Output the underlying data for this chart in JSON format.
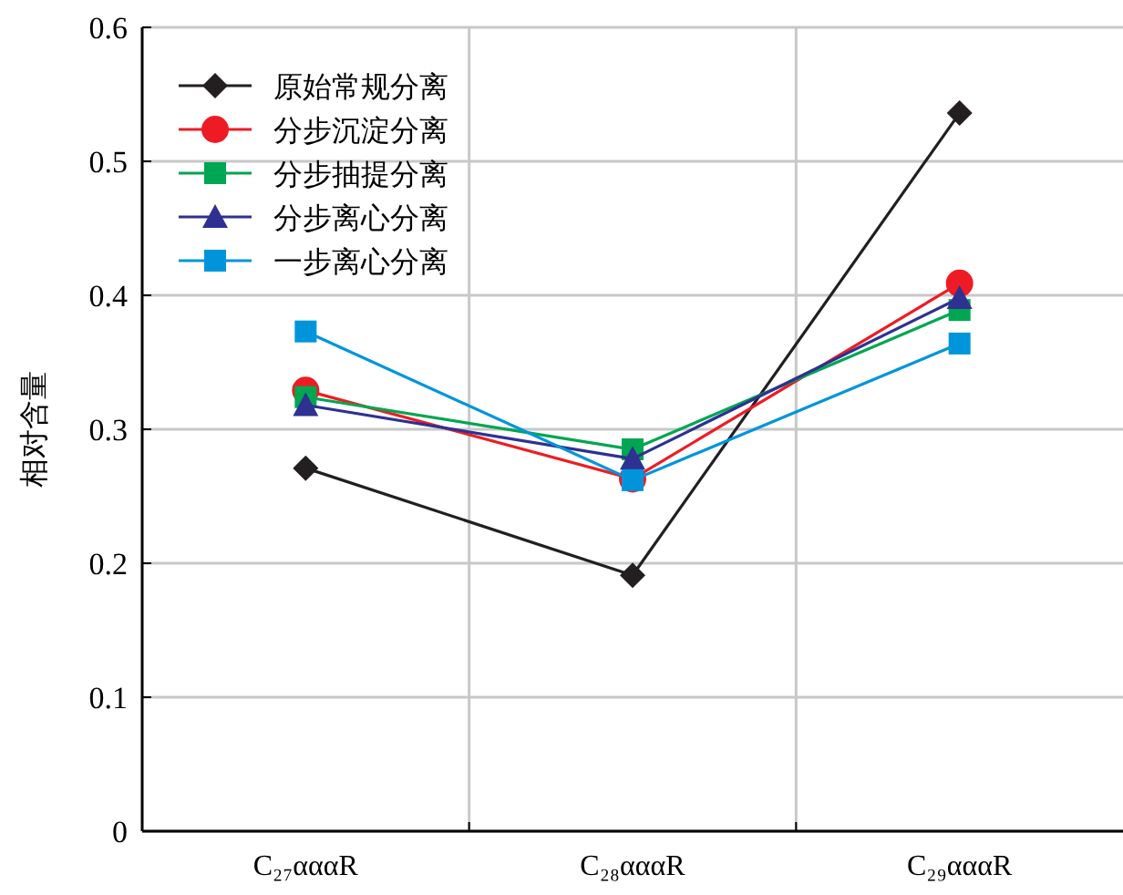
{
  "chart_data": {
    "type": "line",
    "ylabel": "相对含量",
    "categories": [
      "C₂₇αααR",
      "C₂₈αααR",
      "C₂₉αααR"
    ],
    "ylim": [
      0,
      0.6
    ],
    "yticks": [
      0,
      0.1,
      0.2,
      0.3,
      0.4,
      0.5,
      0.6
    ],
    "grid": true,
    "legend": "top left",
    "series": [
      {
        "name": "原始常规分离",
        "color": "#231f20",
        "marker": "diamond",
        "values": [
          0.271,
          0.191,
          0.536
        ]
      },
      {
        "name": "分步沉淀分离",
        "color": "#ed1c24",
        "marker": "circle",
        "values": [
          0.329,
          0.263,
          0.409
        ]
      },
      {
        "name": "分步抽提分离",
        "color": "#00a651",
        "marker": "square",
        "values": [
          0.324,
          0.285,
          0.389
        ]
      },
      {
        "name": "分步离心分离",
        "color": "#2e3192",
        "marker": "triangle",
        "values": [
          0.318,
          0.278,
          0.398
        ]
      },
      {
        "name": "一步离心分离",
        "color": "#0095da",
        "marker": "square",
        "values": [
          0.373,
          0.262,
          0.364
        ]
      }
    ]
  }
}
